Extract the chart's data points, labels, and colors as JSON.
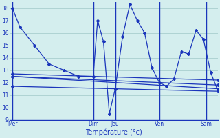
{
  "xlabel": "Température (°c)",
  "background_color": "#d4eeee",
  "line_color": "#1a35bb",
  "grid_color": "#a0c8c8",
  "ylim": [
    9,
    18.5
  ],
  "yticks": [
    9,
    10,
    11,
    12,
    13,
    14,
    15,
    16,
    17,
    18
  ],
  "day_labels": [
    "Mer",
    "Dim",
    "Jeu",
    "Ven",
    "Sam"
  ],
  "day_x": [
    0,
    55,
    70,
    100,
    132
  ],
  "xlim": [
    -2,
    140
  ],
  "series": [
    [
      0,
      18.0
    ],
    [
      5,
      16.5
    ],
    [
      15,
      15.0
    ],
    [
      25,
      13.5
    ],
    [
      35,
      13.0
    ],
    [
      45,
      12.5
    ],
    [
      55,
      12.5
    ],
    [
      58,
      17.0
    ],
    [
      62,
      15.3
    ],
    [
      66,
      9.5
    ],
    [
      70,
      11.5
    ],
    [
      75,
      15.7
    ],
    [
      80,
      18.3
    ],
    [
      85,
      17.0
    ],
    [
      90,
      16.0
    ],
    [
      95,
      13.2
    ],
    [
      100,
      12.0
    ],
    [
      105,
      11.7
    ],
    [
      110,
      12.3
    ],
    [
      115,
      14.5
    ],
    [
      120,
      14.3
    ],
    [
      125,
      16.2
    ],
    [
      130,
      15.5
    ],
    [
      135,
      12.8
    ],
    [
      140,
      11.3
    ]
  ],
  "flat_lines": [
    {
      "x": [
        0,
        140
      ],
      "y": [
        12.7,
        12.2
      ]
    },
    {
      "x": [
        0,
        140
      ],
      "y": [
        12.5,
        11.5
      ]
    },
    {
      "x": [
        0,
        140
      ],
      "y": [
        11.7,
        11.3
      ]
    },
    {
      "x": [
        0,
        140
      ],
      "y": [
        12.5,
        11.8
      ]
    }
  ]
}
